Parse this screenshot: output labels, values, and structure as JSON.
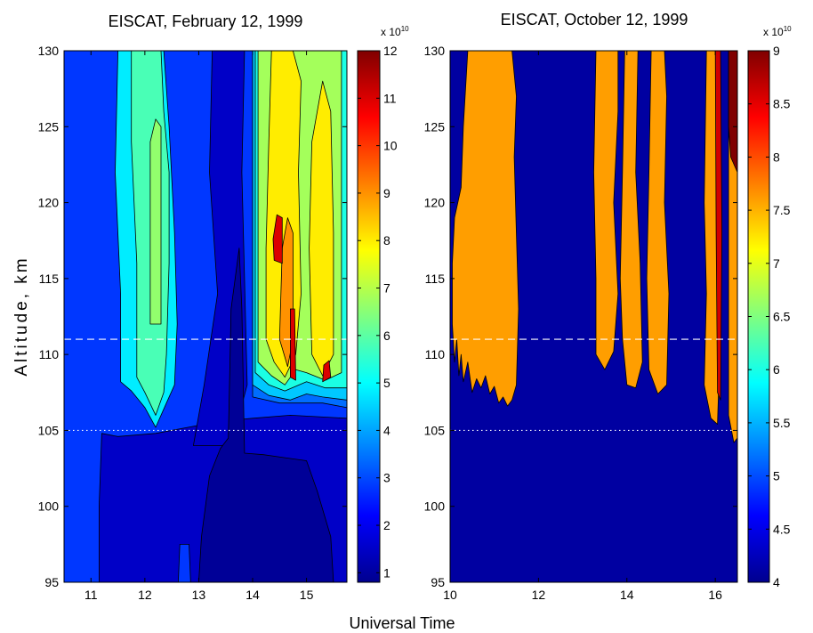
{
  "figure": {
    "xlabel": "Universal Time",
    "ylabel": "Altitude, km"
  },
  "chart_data": [
    {
      "type": "heatmap",
      "title": "EISCAT, February 12, 1999",
      "xlim": [
        10.5,
        15.75
      ],
      "ylim": [
        95,
        130
      ],
      "xticks": [
        11,
        12,
        13,
        14,
        15
      ],
      "yticks": [
        95,
        100,
        105,
        110,
        115,
        120,
        125,
        130
      ],
      "reference_lines": [
        {
          "y": 111,
          "style": "dashed"
        },
        {
          "y": 105,
          "style": "dotted"
        }
      ],
      "colorbar": {
        "range": [
          0.8,
          12
        ],
        "ticks": [
          1,
          2,
          3,
          4,
          5,
          6,
          7,
          8,
          9,
          10,
          11,
          12
        ],
        "multiplier": "x 10",
        "exponent": "10"
      },
      "regions": [
        {
          "level": 2.8,
          "points": [
            [
              10.5,
              95
            ],
            [
              15.75,
              95
            ],
            [
              15.75,
              130
            ],
            [
              10.5,
              130
            ]
          ]
        },
        {
          "level": 1.5,
          "points": [
            [
              11.15,
              95
            ],
            [
              15.75,
              95
            ],
            [
              15.75,
              105.8
            ],
            [
              14.7,
              106.0
            ],
            [
              14.0,
              105.8
            ],
            [
              13.4,
              105.6
            ],
            [
              12.8,
              105.2
            ],
            [
              12.2,
              104.8
            ],
            [
              11.5,
              104.6
            ],
            [
              11.2,
              104.8
            ],
            [
              11.15,
              100
            ]
          ]
        },
        {
          "level": 1.5,
          "points": [
            [
              12.9,
              104
            ],
            [
              13.6,
              104
            ],
            [
              13.9,
              108
            ],
            [
              13.8,
              122
            ],
            [
              13.85,
              130
            ],
            [
              13.25,
              130
            ],
            [
              13.2,
              122
            ],
            [
              13.35,
              114
            ],
            [
              13.1,
              108
            ]
          ]
        },
        {
          "level": 0.9,
          "points": [
            [
              13.0,
              95
            ],
            [
              15.5,
              95
            ],
            [
              15.45,
              98
            ],
            [
              15.2,
              101
            ],
            [
              15.0,
              103
            ],
            [
              14.6,
              103.2
            ],
            [
              14.2,
              103.4
            ],
            [
              13.85,
              103.5
            ],
            [
              13.8,
              113
            ],
            [
              13.75,
              117
            ],
            [
              13.6,
              113
            ],
            [
              13.55,
              104.5
            ],
            [
              13.4,
              103.8
            ],
            [
              13.2,
              102
            ],
            [
              13.05,
              98
            ]
          ]
        },
        {
          "level": 4.8,
          "points": [
            [
              11.55,
              108.2
            ],
            [
              11.75,
              107.6
            ],
            [
              12.0,
              106.5
            ],
            [
              12.2,
              105.2
            ],
            [
              12.4,
              106.8
            ],
            [
              12.55,
              108.0
            ],
            [
              12.6,
              112
            ],
            [
              12.55,
              118
            ],
            [
              12.45,
              125
            ],
            [
              12.35,
              130
            ],
            [
              11.5,
              130
            ],
            [
              11.45,
              122
            ],
            [
              11.55,
              114
            ]
          ]
        },
        {
          "level": 2.8,
          "points": [
            [
              12.62,
              95
            ],
            [
              12.85,
              95
            ],
            [
              12.82,
              97.5
            ],
            [
              12.65,
              97.5
            ]
          ]
        },
        {
          "level": 5.8,
          "points": [
            [
              11.85,
              108.5
            ],
            [
              12.0,
              107.5
            ],
            [
              12.2,
              106.0
            ],
            [
              12.35,
              107.5
            ],
            [
              12.4,
              110
            ],
            [
              12.45,
              116
            ],
            [
              12.45,
              122
            ],
            [
              12.35,
              126
            ],
            [
              12.3,
              130
            ],
            [
              11.75,
              130
            ],
            [
              11.75,
              124
            ],
            [
              11.85,
              116
            ]
          ]
        },
        {
          "level": 6.6,
          "points": [
            [
              12.1,
              112
            ],
            [
              12.3,
              112
            ],
            [
              12.3,
              125
            ],
            [
              12.2,
              125.5
            ],
            [
              12.1,
              124
            ]
          ]
        },
        {
          "level": 3.4,
          "points": [
            [
              14.0,
              107.2
            ],
            [
              14.5,
              106.8
            ],
            [
              14.9,
              106.8
            ],
            [
              15.3,
              106.8
            ],
            [
              15.75,
              106.5
            ],
            [
              15.75,
              130
            ],
            [
              14.0,
              130
            ]
          ]
        },
        {
          "level": 4.4,
          "points": [
            [
              14.0,
              108.0
            ],
            [
              14.3,
              107.3
            ],
            [
              14.7,
              107.0
            ],
            [
              15.0,
              107.4
            ],
            [
              15.3,
              107.2
            ],
            [
              15.75,
              107.0
            ],
            [
              15.75,
              130
            ],
            [
              14.0,
              130
            ]
          ]
        },
        {
          "level": 5.3,
          "points": [
            [
              14.05,
              108.8
            ],
            [
              14.3,
              108.0
            ],
            [
              14.6,
              107.6
            ],
            [
              15.0,
              108.2
            ],
            [
              15.35,
              107.8
            ],
            [
              15.75,
              107.8
            ],
            [
              15.75,
              130
            ],
            [
              14.05,
              130
            ]
          ]
        },
        {
          "level": 6.8,
          "points": [
            [
              14.1,
              109.5
            ],
            [
              14.35,
              108.6
            ],
            [
              14.6,
              108.0
            ],
            [
              14.8,
              109.0
            ],
            [
              15.0,
              108.8
            ],
            [
              15.35,
              108.3
            ],
            [
              15.65,
              108.8
            ],
            [
              15.65,
              130
            ],
            [
              14.1,
              130
            ]
          ]
        },
        {
          "level": 8.0,
          "points": [
            [
              14.25,
              111
            ],
            [
              14.4,
              109.5
            ],
            [
              14.6,
              108.5
            ],
            [
              14.8,
              110.0
            ],
            [
              14.9,
              114
            ],
            [
              14.85,
              122
            ],
            [
              14.9,
              128
            ],
            [
              14.75,
              130
            ],
            [
              14.35,
              130
            ],
            [
              14.3,
              124
            ],
            [
              14.25,
              117
            ]
          ]
        },
        {
          "level": 8.0,
          "points": [
            [
              15.1,
              110
            ],
            [
              15.3,
              108.6
            ],
            [
              15.5,
              110
            ],
            [
              15.5,
              118
            ],
            [
              15.45,
              126
            ],
            [
              15.3,
              128
            ],
            [
              15.1,
              124
            ],
            [
              15.05,
              117
            ]
          ]
        },
        {
          "level": 9.0,
          "points": [
            [
              14.5,
              111
            ],
            [
              14.65,
              109.2
            ],
            [
              14.75,
              111
            ],
            [
              14.75,
              118
            ],
            [
              14.65,
              119
            ],
            [
              14.55,
              117
            ]
          ]
        },
        {
          "level": 11.0,
          "points": [
            [
              14.4,
              116.2
            ],
            [
              14.55,
              116
            ],
            [
              14.55,
              119
            ],
            [
              14.45,
              119.2
            ],
            [
              14.38,
              117.6
            ]
          ]
        },
        {
          "level": 11.0,
          "points": [
            [
              14.7,
              108.5
            ],
            [
              14.8,
              108.3
            ],
            [
              14.78,
              113
            ],
            [
              14.7,
              113
            ]
          ]
        },
        {
          "level": 11.0,
          "points": [
            [
              15.3,
              108.2
            ],
            [
              15.45,
              108.5
            ],
            [
              15.42,
              109.6
            ],
            [
              15.32,
              109.3
            ]
          ]
        }
      ]
    },
    {
      "type": "heatmap",
      "title": "EISCAT, October 12, 1999",
      "xlim": [
        10,
        16.5
      ],
      "ylim": [
        95,
        130
      ],
      "xticks": [
        10,
        12,
        14,
        16
      ],
      "yticks": [
        95,
        100,
        105,
        110,
        115,
        120,
        125,
        130
      ],
      "reference_lines": [
        {
          "y": 111,
          "style": "dashed"
        },
        {
          "y": 105,
          "style": "dotted"
        }
      ],
      "colorbar": {
        "range": [
          4,
          9
        ],
        "ticks": [
          4,
          4.5,
          5,
          5.5,
          6,
          6.5,
          7,
          7.5,
          8,
          8.5,
          9
        ],
        "multiplier": "x 10",
        "exponent": "10"
      },
      "regions": [
        {
          "level": 4.1,
          "points": [
            [
              10,
              95
            ],
            [
              16.5,
              95
            ],
            [
              16.5,
              130
            ],
            [
              10,
              130
            ]
          ]
        },
        {
          "level": 7.6,
          "points": [
            [
              10.05,
              112
            ],
            [
              10.1,
              109.5
            ],
            [
              10.15,
              111
            ],
            [
              10.2,
              108.6
            ],
            [
              10.25,
              110
            ],
            [
              10.3,
              108.2
            ],
            [
              10.4,
              109.5
            ],
            [
              10.5,
              107.5
            ],
            [
              10.6,
              108.4
            ],
            [
              10.7,
              107.8
            ],
            [
              10.8,
              108.6
            ],
            [
              10.9,
              107.4
            ],
            [
              11.0,
              107.9
            ],
            [
              11.1,
              106.8
            ],
            [
              11.2,
              107.2
            ],
            [
              11.3,
              106.6
            ],
            [
              11.4,
              107.0
            ],
            [
              11.5,
              108
            ],
            [
              11.55,
              113
            ],
            [
              11.5,
              118
            ],
            [
              11.45,
              123
            ],
            [
              11.5,
              127
            ],
            [
              11.4,
              130
            ],
            [
              10.4,
              130
            ],
            [
              10.3,
              125
            ],
            [
              10.25,
              121
            ],
            [
              10.1,
              119
            ],
            [
              10.05,
              116
            ]
          ]
        },
        {
          "level": 7.6,
          "points": [
            [
              13.3,
              110
            ],
            [
              13.5,
              109.0
            ],
            [
              13.7,
              110.2
            ],
            [
              13.8,
              114
            ],
            [
              13.7,
              120
            ],
            [
              13.8,
              126
            ],
            [
              13.8,
              130
            ],
            [
              13.3,
              130
            ],
            [
              13.25,
              122
            ],
            [
              13.3,
              115
            ]
          ]
        },
        {
          "level": 7.6,
          "points": [
            [
              13.9,
              111
            ],
            [
              14.0,
              108.0
            ],
            [
              14.2,
              107.8
            ],
            [
              14.35,
              109.5
            ],
            [
              14.3,
              116
            ],
            [
              14.2,
              122
            ],
            [
              14.25,
              130
            ],
            [
              13.95,
              130
            ],
            [
              13.9,
              122
            ],
            [
              13.85,
              115
            ]
          ]
        },
        {
          "level": 7.6,
          "points": [
            [
              14.5,
              109
            ],
            [
              14.7,
              107.4
            ],
            [
              14.9,
              108.0
            ],
            [
              14.95,
              114
            ],
            [
              14.85,
              120
            ],
            [
              14.9,
              127
            ],
            [
              14.85,
              130
            ],
            [
              14.55,
              130
            ],
            [
              14.5,
              122
            ],
            [
              14.45,
              115
            ]
          ]
        },
        {
          "level": 7.6,
          "points": [
            [
              15.75,
              108
            ],
            [
              15.9,
              105.8
            ],
            [
              16.05,
              105.4
            ],
            [
              16.1,
              110
            ],
            [
              16.05,
              118
            ],
            [
              16.1,
              130
            ],
            [
              15.8,
              130
            ],
            [
              15.75,
              120
            ],
            [
              15.8,
              114
            ]
          ]
        },
        {
          "level": 7.6,
          "points": [
            [
              16.3,
              106
            ],
            [
              16.42,
              104.2
            ],
            [
              16.5,
              104.5
            ],
            [
              16.5,
              130
            ],
            [
              16.3,
              130
            ]
          ]
        },
        {
          "level": 8.6,
          "points": [
            [
              16.05,
              107.5
            ],
            [
              16.12,
              107.0
            ],
            [
              16.15,
              118
            ],
            [
              16.12,
              130
            ],
            [
              16.0,
              130
            ],
            [
              16.02,
              118
            ]
          ]
        },
        {
          "level": 9.0,
          "points": [
            [
              16.3,
              125
            ],
            [
              16.35,
              123
            ],
            [
              16.5,
              122
            ],
            [
              16.5,
              130
            ],
            [
              16.3,
              130
            ]
          ]
        }
      ]
    }
  ]
}
